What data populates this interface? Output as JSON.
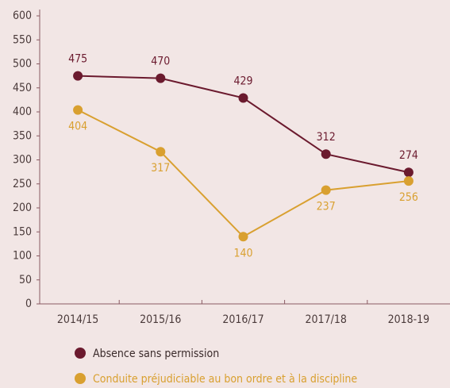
{
  "chart_data": {
    "type": "line",
    "categories": [
      "2014/15",
      "2015/16",
      "2016/17",
      "2017/18",
      "2018-19"
    ],
    "series": [
      {
        "name": "Absence sans permission",
        "color": "#6b1a2e",
        "values": [
          475,
          470,
          429,
          312,
          274
        ]
      },
      {
        "name": "Conduite préjudiciable au bon ordre et à la discipline",
        "color": "#d9a030",
        "values": [
          404,
          317,
          140,
          237,
          256
        ]
      }
    ],
    "ylim": [
      0,
      600
    ],
    "yticks": [
      0,
      50,
      100,
      150,
      200,
      250,
      300,
      350,
      400,
      450,
      500,
      550,
      600
    ],
    "grid": false,
    "legend": "bottom"
  }
}
